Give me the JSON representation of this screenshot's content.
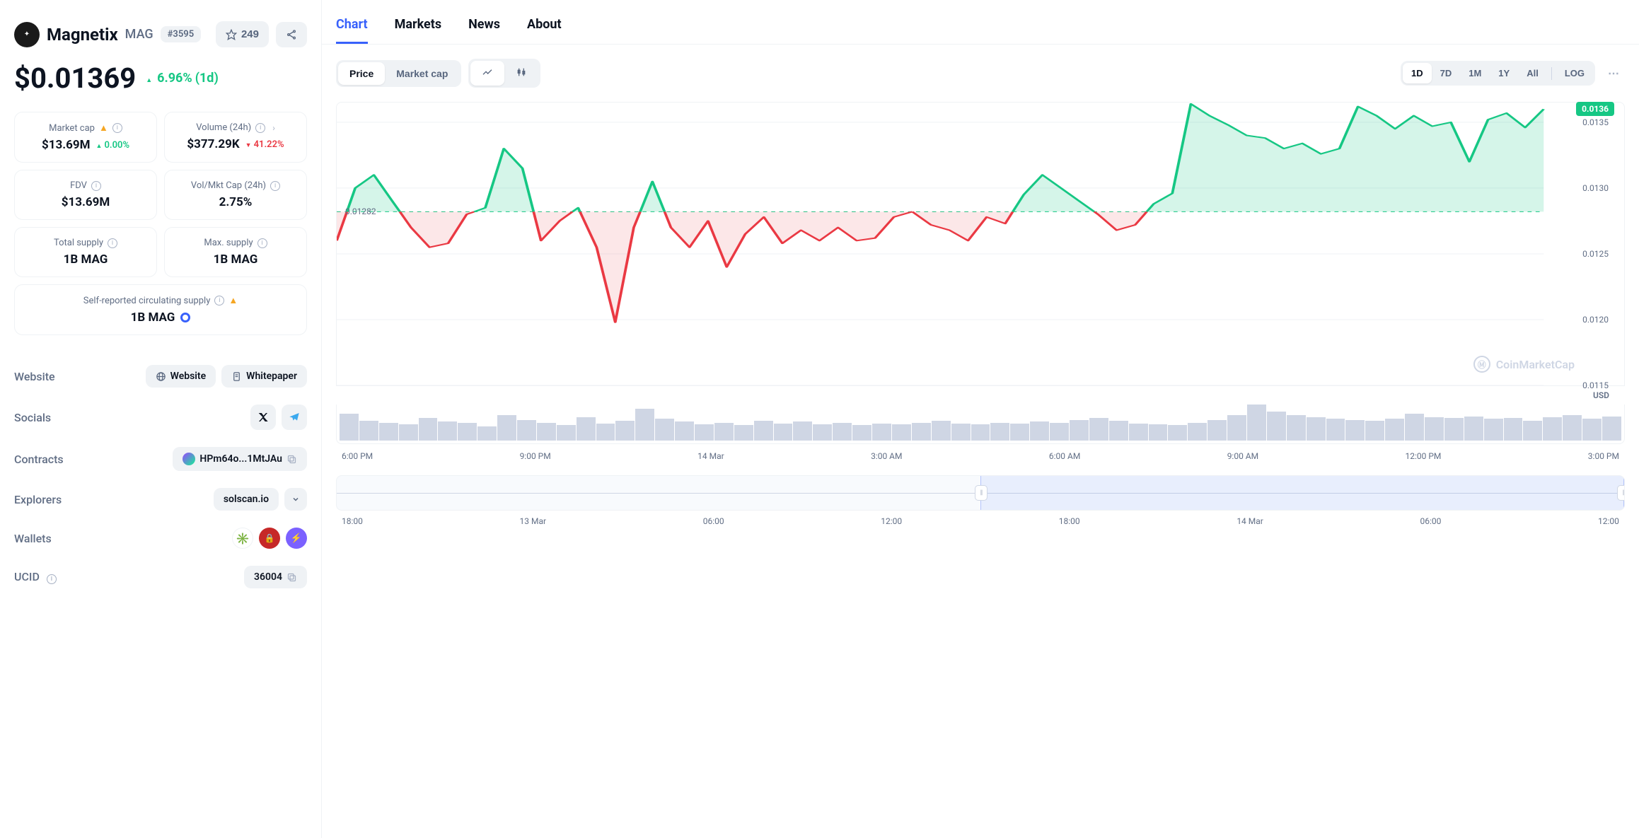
{
  "coin": {
    "name": "Magnetix",
    "symbol": "MAG",
    "rank": "#3595",
    "watchlist_count": "249"
  },
  "price": {
    "value": "$0.01369",
    "change_pct": "6.96%",
    "change_period": "(1d)",
    "direction": "up"
  },
  "stats": {
    "market_cap": {
      "label": "Market cap",
      "value": "$13.69M",
      "change": "0.00%",
      "dir": "up"
    },
    "volume_24h": {
      "label": "Volume (24h)",
      "value": "$377.29K",
      "change": "41.22%",
      "dir": "down"
    },
    "fdv": {
      "label": "FDV",
      "value": "$13.69M"
    },
    "vol_mkt": {
      "label": "Vol/Mkt Cap (24h)",
      "value": "2.75%"
    },
    "total_supply": {
      "label": "Total supply",
      "value": "1B MAG"
    },
    "max_supply": {
      "label": "Max. supply",
      "value": "1B MAG"
    },
    "circ_supply": {
      "label": "Self-reported circulating supply",
      "value": "1B MAG"
    }
  },
  "links": {
    "website_label": "Website",
    "website_btn": "Website",
    "whitepaper_btn": "Whitepaper",
    "socials_label": "Socials",
    "contracts_label": "Contracts",
    "contract_text": "HPm64o...1MtJAu",
    "explorers_label": "Explorers",
    "explorer_text": "solscan.io",
    "wallets_label": "Wallets",
    "ucid_label": "UCID",
    "ucid_value": "36004"
  },
  "tabs": {
    "chart": "Chart",
    "markets": "Markets",
    "news": "News",
    "about": "About"
  },
  "chart_controls": {
    "price": "Price",
    "market_cap": "Market cap",
    "ranges": {
      "d1": "1D",
      "d7": "7D",
      "m1": "1M",
      "y1": "1Y",
      "all": "All",
      "log": "LOG"
    }
  },
  "chart": {
    "type": "line-baseline",
    "baseline": 0.01282,
    "baseline_label": "0.01282",
    "current_price_tag": "0.0136",
    "y_axis": {
      "min": 0.0115,
      "max": 0.01365,
      "ticks": [
        0.0115,
        0.012,
        0.0125,
        0.013,
        0.0135
      ],
      "tick_labels": [
        "0.0115",
        "0.0120",
        "0.0125",
        "0.0130",
        "0.0135"
      ]
    },
    "x_axis": {
      "labels": [
        "6:00 PM",
        "9:00 PM",
        "14 Mar",
        "3:00 AM",
        "6:00 AM",
        "9:00 AM",
        "12:00 PM",
        "3:00 PM"
      ]
    },
    "colors": {
      "up_line": "#16c784",
      "up_fill": "rgba(22,199,132,0.18)",
      "down_line": "#ea3943",
      "down_fill": "rgba(234,57,67,0.12)",
      "grid": "#eff2f5",
      "baseline_dash": "#16c784"
    },
    "series": [
      [
        0,
        0.0126
      ],
      [
        1,
        0.013
      ],
      [
        2,
        0.0131
      ],
      [
        3,
        0.0129
      ],
      [
        4,
        0.0127
      ],
      [
        5,
        0.01255
      ],
      [
        6,
        0.01258
      ],
      [
        7,
        0.0128
      ],
      [
        8,
        0.01285
      ],
      [
        9,
        0.0133
      ],
      [
        10,
        0.01315
      ],
      [
        11,
        0.0126
      ],
      [
        12,
        0.01275
      ],
      [
        13,
        0.01285
      ],
      [
        14,
        0.01255
      ],
      [
        15,
        0.01198
      ],
      [
        16,
        0.0127
      ],
      [
        17,
        0.01305
      ],
      [
        18,
        0.0127
      ],
      [
        19,
        0.01255
      ],
      [
        20,
        0.01275
      ],
      [
        21,
        0.0124
      ],
      [
        22,
        0.01265
      ],
      [
        23,
        0.01278
      ],
      [
        24,
        0.01258
      ],
      [
        25,
        0.01268
      ],
      [
        26,
        0.0126
      ],
      [
        27,
        0.0127
      ],
      [
        28,
        0.0126
      ],
      [
        29,
        0.01262
      ],
      [
        30,
        0.01278
      ],
      [
        31,
        0.01282
      ],
      [
        32,
        0.01272
      ],
      [
        33,
        0.01268
      ],
      [
        34,
        0.0126
      ],
      [
        35,
        0.01278
      ],
      [
        36,
        0.01273
      ],
      [
        37,
        0.01295
      ],
      [
        38,
        0.0131
      ],
      [
        39,
        0.013
      ],
      [
        40,
        0.0129
      ],
      [
        41,
        0.0128
      ],
      [
        42,
        0.01268
      ],
      [
        43,
        0.01272
      ],
      [
        44,
        0.01288
      ],
      [
        45,
        0.01296
      ],
      [
        46,
        0.01364
      ],
      [
        47,
        0.01355
      ],
      [
        48,
        0.01348
      ],
      [
        49,
        0.0134
      ],
      [
        50,
        0.01338
      ],
      [
        51,
        0.0133
      ],
      [
        52,
        0.01334
      ],
      [
        53,
        0.01326
      ],
      [
        54,
        0.0133
      ],
      [
        55,
        0.01362
      ],
      [
        56,
        0.01355
      ],
      [
        57,
        0.01345
      ],
      [
        58,
        0.01355
      ],
      [
        59,
        0.01347
      ],
      [
        60,
        0.0135
      ],
      [
        61,
        0.0132
      ],
      [
        62,
        0.01352
      ],
      [
        63,
        0.01357
      ],
      [
        64,
        0.01346
      ],
      [
        65,
        0.0136
      ]
    ],
    "volume_heights": [
      30,
      22,
      20,
      18,
      25,
      21,
      20,
      16,
      28,
      23,
      20,
      17,
      26,
      19,
      22,
      35,
      24,
      21,
      18,
      20,
      17,
      22,
      19,
      21,
      18,
      20,
      17,
      19,
      18,
      20,
      22,
      19,
      18,
      20,
      19,
      21,
      20,
      23,
      25,
      22,
      19,
      18,
      17,
      20,
      23,
      28,
      40,
      32,
      28,
      26,
      24,
      23,
      22,
      24,
      30,
      26,
      25,
      27,
      24,
      25,
      22,
      26,
      28,
      24,
      27
    ],
    "watermark": "CoinMarketCap",
    "currency_label": "USD"
  },
  "overview": {
    "selection_start_pct": 50,
    "selection_end_pct": 100,
    "x_labels": [
      "18:00",
      "13 Mar",
      "06:00",
      "12:00",
      "18:00",
      "14 Mar",
      "06:00",
      "12:00"
    ]
  }
}
